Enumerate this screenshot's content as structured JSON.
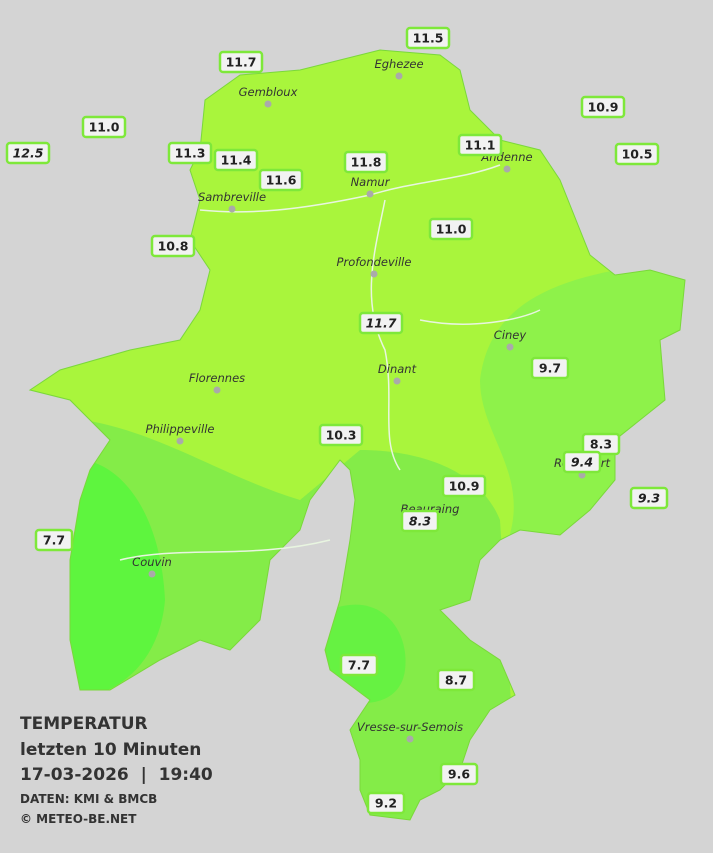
{
  "legend": {
    "title": "TEMPERATUR",
    "period": "letzten 10 Minuten",
    "timestamp": "17-03-2026  |  19:40",
    "source": "DATEN: KMI & BMCB",
    "copyright": "© METEO-BE.NET"
  },
  "cities": [
    "Eghezee",
    "Gembloux",
    "Andenne",
    "Namur",
    "Sambreville",
    "Profondeville",
    "Ciney",
    "Dinant",
    "Florennes",
    "Philippeville",
    "Rochefort",
    "Beauraing",
    "Couvin",
    "Vresse-sur-Semois"
  ],
  "stations": [
    {
      "value": "11.5",
      "italic": false
    },
    {
      "value": "11.7",
      "italic": false
    },
    {
      "value": "10.9",
      "italic": false
    },
    {
      "value": "11.0",
      "italic": false
    },
    {
      "value": "12.5",
      "italic": true
    },
    {
      "value": "11.3",
      "italic": false
    },
    {
      "value": "11.4",
      "italic": false
    },
    {
      "value": "11.1",
      "italic": false
    },
    {
      "value": "10.5",
      "italic": false
    },
    {
      "value": "11.8",
      "italic": false
    },
    {
      "value": "11.6",
      "italic": false
    },
    {
      "value": "11.0",
      "italic": false
    },
    {
      "value": "10.8",
      "italic": false
    },
    {
      "value": "11.7",
      "italic": true
    },
    {
      "value": "9.7",
      "italic": false
    },
    {
      "value": "10.3",
      "italic": false
    },
    {
      "value": "8.3",
      "italic": false
    },
    {
      "value": "9.4",
      "italic": true
    },
    {
      "value": "10.9",
      "italic": false
    },
    {
      "value": "9.3",
      "italic": true
    },
    {
      "value": "8.3",
      "italic": true
    },
    {
      "value": "7.7",
      "italic": false
    },
    {
      "value": "7.7",
      "italic": false
    },
    {
      "value": "8.7",
      "italic": false
    },
    {
      "value": "9.6",
      "italic": false
    },
    {
      "value": "9.2",
      "italic": false
    }
  ]
}
